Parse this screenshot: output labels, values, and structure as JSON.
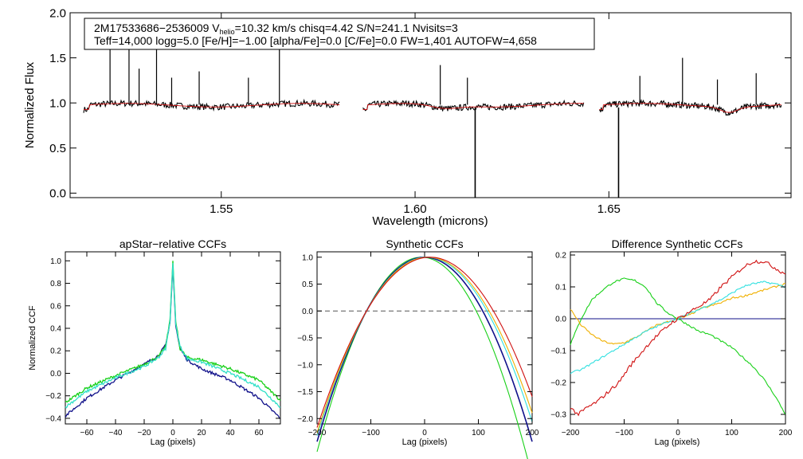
{
  "chart_data": [
    {
      "type": "line",
      "id": "spectrum",
      "title": "",
      "xlabel": "Wavelength (microns)",
      "ylabel": "Normalized Flux",
      "xlim": [
        1.511,
        1.697
      ],
      "ylim": [
        -0.05,
        2.0
      ],
      "xticks": [
        1.55,
        1.6,
        1.65
      ],
      "xtick_labels": [
        "1.55",
        "1.60",
        "1.65"
      ],
      "yticks": [
        0.0,
        0.5,
        1.0,
        1.5,
        2.0
      ],
      "ytick_labels": [
        "0.0",
        "0.5",
        "1.0",
        "1.5",
        "2.0"
      ],
      "info_box": {
        "line1_prefix": "2M17533686−2536009  V",
        "line1_sub": "helio",
        "line1_suffix": "=10.32 km/s  chisq=4.42  S/N=241.1  Nvisits=3",
        "line2": "Teff=14,000 logg=5.0 [Fe/H]=−1.00 [alpha/Fe]=0.0 [C/Fe]=0.0 FW=1,401 AUTOFW=4,658"
      },
      "chips": [
        {
          "start": 1.5145,
          "end": 1.5805
        },
        {
          "start": 1.5865,
          "end": 1.6435
        },
        {
          "start": 1.6475,
          "end": 1.6945
        }
      ],
      "spikes": [
        {
          "x": 1.5213,
          "y": 1.6
        },
        {
          "x": 1.5262,
          "y": 1.62
        },
        {
          "x": 1.5333,
          "y": 1.68
        },
        {
          "x": 1.5288,
          "y": 1.38
        },
        {
          "x": 1.5372,
          "y": 1.28
        },
        {
          "x": 1.5443,
          "y": 1.35
        },
        {
          "x": 1.557,
          "y": 1.28
        },
        {
          "x": 1.565,
          "y": 1.66
        },
        {
          "x": 1.6065,
          "y": 1.42
        },
        {
          "x": 1.6135,
          "y": 1.28
        },
        {
          "x": 1.658,
          "y": 1.3
        },
        {
          "x": 1.669,
          "y": 1.5
        },
        {
          "x": 1.678,
          "y": 1.26
        },
        {
          "x": 1.688,
          "y": 1.33
        }
      ],
      "dips": [
        {
          "x": 1.6155,
          "y": -0.08
        },
        {
          "x": 1.6525,
          "y": -0.08
        }
      ],
      "series": [
        {
          "name": "observed",
          "color": "#000000"
        },
        {
          "name": "model",
          "color": "#d01010"
        }
      ]
    },
    {
      "type": "line",
      "id": "ccf_apstar",
      "title": "apStar−relative CCFs",
      "xlabel": "Lag (pixels)",
      "ylabel": "Normalized CCF",
      "xlim": [
        -75,
        75
      ],
      "ylim": [
        -0.45,
        1.08
      ],
      "xticks": [
        -60,
        -40,
        -20,
        0,
        20,
        40,
        60
      ],
      "xtick_labels": [
        "−60",
        "−40",
        "−20",
        "0",
        "20",
        "40",
        "60"
      ],
      "yticks": [
        -0.4,
        -0.2,
        0.0,
        0.2,
        0.4,
        0.6,
        0.8,
        1.0
      ],
      "ytick_labels": [
        "−0.4",
        "−0.2",
        "0.0",
        "0.2",
        "0.4",
        "0.6",
        "0.8",
        "1.0"
      ],
      "series": [
        {
          "name": "visit 1",
          "color": "#10108a",
          "points": [
            [
              -75,
              -0.38
            ],
            [
              -60,
              -0.22
            ],
            [
              -40,
              -0.06
            ],
            [
              -20,
              0.08
            ],
            [
              -10,
              0.16
            ],
            [
              -5,
              0.25
            ],
            [
              -2,
              0.45
            ],
            [
              0,
              0.95
            ],
            [
              2,
              0.42
            ],
            [
              5,
              0.22
            ],
            [
              10,
              0.12
            ],
            [
              20,
              0.04
            ],
            [
              40,
              -0.06
            ],
            [
              60,
              -0.22
            ],
            [
              75,
              -0.4
            ]
          ]
        },
        {
          "name": "visit 2",
          "color": "#18d018",
          "points": [
            [
              -75,
              -0.26
            ],
            [
              -60,
              -0.13
            ],
            [
              -40,
              -0.02
            ],
            [
              -20,
              0.08
            ],
            [
              -10,
              0.15
            ],
            [
              -5,
              0.24
            ],
            [
              -2,
              0.48
            ],
            [
              0,
              1.0
            ],
            [
              2,
              0.46
            ],
            [
              5,
              0.22
            ],
            [
              10,
              0.14
            ],
            [
              20,
              0.12
            ],
            [
              40,
              0.04
            ],
            [
              60,
              -0.06
            ],
            [
              75,
              -0.24
            ]
          ]
        },
        {
          "name": "visit 3",
          "color": "#30e0c8",
          "points": [
            [
              -75,
              -0.3
            ],
            [
              -60,
              -0.16
            ],
            [
              -40,
              -0.04
            ],
            [
              -20,
              0.06
            ],
            [
              -10,
              0.14
            ],
            [
              -5,
              0.22
            ],
            [
              -2,
              0.46
            ],
            [
              0,
              0.98
            ],
            [
              2,
              0.44
            ],
            [
              5,
              0.24
            ],
            [
              10,
              0.13
            ],
            [
              20,
              0.1
            ],
            [
              40,
              0.0
            ],
            [
              60,
              -0.12
            ],
            [
              75,
              -0.3
            ]
          ]
        }
      ]
    },
    {
      "type": "line",
      "id": "ccf_synth",
      "title": "Synthetic CCFs",
      "xlabel": "Lag (pixels)",
      "ylabel": "",
      "xlim": [
        -200,
        200
      ],
      "ylim": [
        -2.1,
        1.1
      ],
      "xticks": [
        -200,
        -100,
        0,
        100,
        200
      ],
      "xtick_labels": [
        "−200",
        "−100",
        "0",
        "100",
        "200"
      ],
      "yticks": [
        -2.0,
        -1.5,
        -1.0,
        -0.5,
        0.0,
        0.5,
        1.0
      ],
      "ytick_labels": [
        "−2.0",
        "−1.5",
        "−1.0",
        "−0.5",
        "0.0",
        "0.5",
        "1.0"
      ],
      "zero_line": 0.0,
      "series": [
        {
          "name": "green",
          "color": "#18d018",
          "width": 102,
          "shift": -6
        },
        {
          "name": "navy",
          "color": "#10108a",
          "width": 108,
          "shift": 0
        },
        {
          "name": "cyan",
          "color": "#30e0e0",
          "width": 112,
          "shift": 4
        },
        {
          "name": "orange",
          "color": "#f0b000",
          "width": 114,
          "shift": 6
        },
        {
          "name": "red",
          "color": "#d01010",
          "width": 118,
          "shift": 10
        }
      ]
    },
    {
      "type": "line",
      "id": "ccf_diff",
      "title": "Difference Synthetic CCFs",
      "xlabel": "Lag (pixels)",
      "ylabel": "",
      "xlim": [
        -200,
        200
      ],
      "ylim": [
        -0.33,
        0.21
      ],
      "xticks": [
        -200,
        -100,
        0,
        100,
        200
      ],
      "xtick_labels": [
        "−200",
        "−100",
        "0",
        "100",
        "200"
      ],
      "yticks": [
        -0.3,
        -0.2,
        -0.1,
        0.0,
        0.1,
        0.2
      ],
      "ytick_labels": [
        "−0.3",
        "−0.2",
        "−0.1",
        "0.0",
        "0.1",
        "0.2"
      ],
      "series": [
        {
          "name": "navy",
          "color": "#10108a",
          "points": [
            [
              -200,
              0.0
            ],
            [
              200,
              0.0
            ]
          ]
        },
        {
          "name": "green",
          "color": "#18d018",
          "points": [
            [
              -200,
              -0.08
            ],
            [
              -180,
              0.0
            ],
            [
              -160,
              0.06
            ],
            [
              -140,
              0.09
            ],
            [
              -120,
              0.115
            ],
            [
              -100,
              0.125
            ],
            [
              -80,
              0.12
            ],
            [
              -60,
              0.1
            ],
            [
              -40,
              0.05
            ],
            [
              -20,
              0.02
            ],
            [
              0,
              0.0
            ],
            [
              20,
              -0.02
            ],
            [
              40,
              -0.04
            ],
            [
              60,
              -0.05
            ],
            [
              80,
              -0.07
            ],
            [
              100,
              -0.09
            ],
            [
              120,
              -0.12
            ],
            [
              140,
              -0.15
            ],
            [
              160,
              -0.19
            ],
            [
              180,
              -0.24
            ],
            [
              200,
              -0.3
            ]
          ]
        },
        {
          "name": "orange",
          "color": "#f0b000",
          "points": [
            [
              -200,
              0.03
            ],
            [
              -180,
              -0.02
            ],
            [
              -160,
              -0.05
            ],
            [
              -140,
              -0.07
            ],
            [
              -120,
              -0.08
            ],
            [
              -100,
              -0.075
            ],
            [
              -80,
              -0.06
            ],
            [
              -60,
              -0.04
            ],
            [
              -40,
              -0.02
            ],
            [
              -20,
              -0.01
            ],
            [
              0,
              0.0
            ],
            [
              20,
              0.01
            ],
            [
              40,
              0.03
            ],
            [
              60,
              0.04
            ],
            [
              80,
              0.05
            ],
            [
              100,
              0.065
            ],
            [
              120,
              0.07
            ],
            [
              140,
              0.08
            ],
            [
              160,
              0.09
            ],
            [
              180,
              0.1
            ],
            [
              200,
              0.11
            ]
          ]
        },
        {
          "name": "cyan",
          "color": "#30e0e0",
          "points": [
            [
              -200,
              -0.17
            ],
            [
              -180,
              -0.16
            ],
            [
              -160,
              -0.14
            ],
            [
              -140,
              -0.12
            ],
            [
              -120,
              -0.1
            ],
            [
              -100,
              -0.08
            ],
            [
              -80,
              -0.06
            ],
            [
              -60,
              -0.04
            ],
            [
              -40,
              -0.025
            ],
            [
              -20,
              -0.01
            ],
            [
              0,
              0.0
            ],
            [
              20,
              0.015
            ],
            [
              40,
              0.03
            ],
            [
              60,
              0.045
            ],
            [
              80,
              0.06
            ],
            [
              100,
              0.08
            ],
            [
              120,
              0.1
            ],
            [
              140,
              0.11
            ],
            [
              160,
              0.115
            ],
            [
              180,
              0.11
            ],
            [
              200,
              0.1
            ]
          ]
        },
        {
          "name": "red",
          "color": "#d01010",
          "points": [
            [
              -200,
              -0.28
            ],
            [
              -185,
              -0.3
            ],
            [
              -170,
              -0.28
            ],
            [
              -150,
              -0.26
            ],
            [
              -130,
              -0.23
            ],
            [
              -110,
              -0.2
            ],
            [
              -90,
              -0.15
            ],
            [
              -70,
              -0.11
            ],
            [
              -50,
              -0.07
            ],
            [
              -30,
              -0.04
            ],
            [
              -10,
              -0.01
            ],
            [
              0,
              0.0
            ],
            [
              20,
              0.02
            ],
            [
              40,
              0.04
            ],
            [
              60,
              0.06
            ],
            [
              80,
              0.1
            ],
            [
              100,
              0.13
            ],
            [
              120,
              0.16
            ],
            [
              140,
              0.18
            ],
            [
              160,
              0.18
            ],
            [
              180,
              0.16
            ],
            [
              200,
              0.14
            ]
          ]
        }
      ]
    }
  ]
}
